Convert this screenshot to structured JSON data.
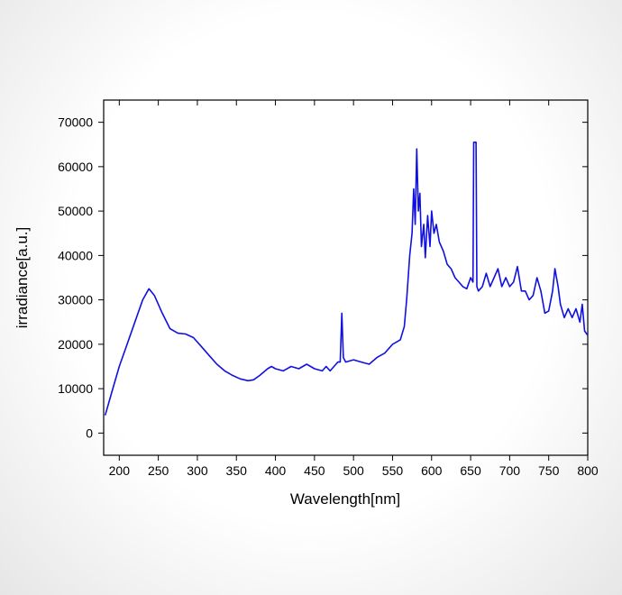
{
  "chart_data": {
    "type": "line",
    "xlabel": "Wavelength[nm]",
    "ylabel": "irradiance[a.u.]",
    "xlim": [
      180,
      800
    ],
    "ylim": [
      -5000,
      75000
    ],
    "xticks": [
      200,
      250,
      300,
      350,
      400,
      450,
      500,
      550,
      600,
      650,
      700,
      750,
      800
    ],
    "yticks": [
      0,
      10000,
      20000,
      30000,
      40000,
      50000,
      60000,
      70000
    ],
    "series": [
      {
        "name": "irradiance",
        "color": "#1010e0",
        "x": [
          182,
          190,
          200,
          210,
          220,
          230,
          238,
          245,
          255,
          265,
          275,
          285,
          295,
          305,
          315,
          325,
          335,
          345,
          355,
          365,
          372,
          380,
          390,
          395,
          400,
          410,
          420,
          430,
          440,
          450,
          460,
          465,
          470,
          475,
          480,
          483,
          485,
          487,
          490,
          500,
          510,
          520,
          530,
          540,
          550,
          560,
          565,
          568,
          572,
          575,
          577,
          579,
          581,
          583,
          585,
          587,
          590,
          592,
          595,
          598,
          600,
          603,
          606,
          610,
          615,
          620,
          625,
          630,
          635,
          640,
          645,
          650,
          653,
          654,
          657,
          658,
          660,
          665,
          670,
          675,
          680,
          685,
          690,
          695,
          700,
          705,
          710,
          715,
          720,
          725,
          730,
          735,
          740,
          745,
          750,
          755,
          758,
          762,
          765,
          770,
          775,
          780,
          785,
          790,
          793,
          796,
          800
        ],
        "values": [
          4000,
          9000,
          15000,
          20000,
          25000,
          30000,
          32500,
          31000,
          27000,
          23500,
          22500,
          22300,
          21500,
          19500,
          17500,
          15500,
          14000,
          13000,
          12200,
          11800,
          12000,
          13000,
          14500,
          15000,
          14500,
          14000,
          15000,
          14500,
          15500,
          14500,
          14000,
          15000,
          14000,
          15000,
          16000,
          16000,
          27000,
          17000,
          16000,
          16500,
          16000,
          15500,
          17000,
          18000,
          20000,
          21000,
          24000,
          30000,
          40000,
          45000,
          55000,
          47000,
          64000,
          50000,
          54000,
          42000,
          47000,
          39500,
          49000,
          42000,
          50000,
          45000,
          47000,
          43000,
          41000,
          38000,
          37000,
          35000,
          34000,
          33000,
          32500,
          35000,
          34000,
          65500,
          65500,
          33000,
          32000,
          33000,
          36000,
          33000,
          35000,
          37000,
          33000,
          35000,
          33000,
          34000,
          37500,
          32000,
          32000,
          30000,
          31000,
          35000,
          32000,
          27000,
          27500,
          32000,
          37000,
          33000,
          29000,
          26000,
          28000,
          26000,
          28000,
          25000,
          29000,
          23000,
          22000
        ]
      }
    ]
  }
}
